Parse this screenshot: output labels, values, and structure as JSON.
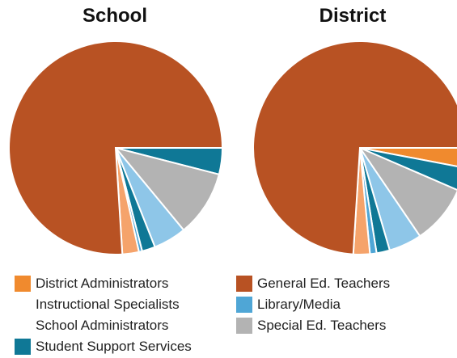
{
  "chart_data": [
    {
      "type": "pie",
      "title": "School",
      "slices": [
        {
          "name": "General Ed. Teachers",
          "value": 76
        },
        {
          "name": "Student Support Services",
          "value": 4
        },
        {
          "name": "Special Ed. Teachers",
          "value": 10
        },
        {
          "name": "Library/Media",
          "value": 5
        },
        {
          "name": "Student Support Services",
          "value": 2
        },
        {
          "name": "Library/Media",
          "value": 0.5
        },
        {
          "name": "District Administrators",
          "value": 2.5
        }
      ]
    },
    {
      "type": "pie",
      "title": "District",
      "slices": [
        {
          "name": "General Ed. Teachers",
          "value": 74
        },
        {
          "name": "District Administrators",
          "value": 3
        },
        {
          "name": "Student Support Services",
          "value": 3.5
        },
        {
          "name": "Special Ed. Teachers",
          "value": 9
        },
        {
          "name": "Library/Media",
          "value": 5
        },
        {
          "name": "Student Support Services",
          "value": 2
        },
        {
          "name": "Library/Media",
          "value": 1
        },
        {
          "name": "District Administrators",
          "value": 2.5
        }
      ]
    }
  ],
  "legend": [
    {
      "label": "District Administrators",
      "color": "#f08a2e",
      "swatch": true
    },
    {
      "label": "Instructional Specialists",
      "color": "",
      "swatch": false
    },
    {
      "label": "School Administrators",
      "color": "",
      "swatch": false
    },
    {
      "label": "Student Support Services",
      "color": "#0f7896",
      "swatch": true
    },
    {
      "label": "General Ed. Teachers",
      "color": "#b85223",
      "swatch": true
    },
    {
      "label": "Library/Media",
      "color": "#4fa6d6",
      "swatch": true
    },
    {
      "label": "Special Ed. Teachers",
      "color": "#b3b3b3",
      "swatch": true
    }
  ],
  "colors": {
    "General Ed. Teachers": "#b85223",
    "District Administrators": "#f5a36b",
    "District Administrators (District)": "#f08a2e",
    "Student Support Services": "#0f7896",
    "Special Ed. Teachers": "#b3b3b3",
    "Library/Media": "#8ec6e8",
    "Library/Media (dark)": "#4fa6d6"
  }
}
